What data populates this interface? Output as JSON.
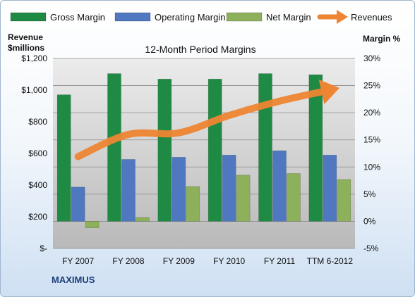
{
  "chart_data": {
    "type": "bar",
    "title": "12-Month Period Margins",
    "company": "MAXIMUS",
    "categories": [
      "FY 2007",
      "FY 2008",
      "FY 2009",
      "FY 2010",
      "FY 2011",
      "TTM 6-2012"
    ],
    "left_axis": {
      "label_line1": "Revenue",
      "label_line2": "$millions",
      "range": [
        0,
        1200
      ],
      "ticks": [
        0,
        200,
        400,
        600,
        800,
        1000,
        1200
      ],
      "tick_labels": [
        "$-",
        "$200",
        "$400",
        "$600",
        "$800",
        "$1,000",
        "$1,200"
      ]
    },
    "right_axis": {
      "label": "Margin %",
      "range": [
        -5,
        30
      ],
      "ticks": [
        -5,
        0,
        5,
        10,
        15,
        20,
        25,
        30
      ],
      "tick_labels": [
        "-5%",
        "0%",
        "5%",
        "10%",
        "15%",
        "20%",
        "25%",
        "30%"
      ]
    },
    "series": [
      {
        "name": "Gross Margin",
        "axis": "right",
        "kind": "bar",
        "color": "#1f8a44",
        "values": [
          23.3,
          27.2,
          26.2,
          26.2,
          27.2,
          27.0
        ]
      },
      {
        "name": "Operating Margin",
        "axis": "right",
        "kind": "bar",
        "color": "#4f78c0",
        "values": [
          6.3,
          11.4,
          11.8,
          12.2,
          13.0,
          12.2
        ]
      },
      {
        "name": "Net Margin",
        "axis": "right",
        "kind": "bar",
        "color": "#8db05a",
        "values": [
          -1.2,
          0.7,
          6.4,
          8.5,
          8.8,
          7.7
        ]
      },
      {
        "name": "Revenues",
        "axis": "left",
        "kind": "line",
        "color": "#ee8533",
        "values": [
          580,
          720,
          730,
          840,
          930,
          1000
        ]
      }
    ],
    "grid": true,
    "legend_position": "top"
  }
}
